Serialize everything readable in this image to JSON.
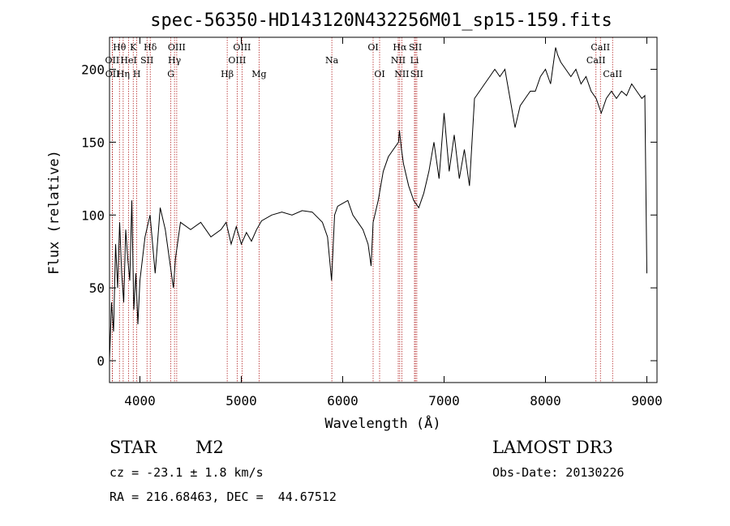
{
  "chart_data": {
    "type": "line",
    "title": "spec-56350-HD143120N432256M01_sp15-159.fits",
    "xlabel": "Wavelength (Å)",
    "ylabel": "Flux (relative)",
    "xlim": [
      3700,
      9100
    ],
    "ylim": [
      -15,
      222
    ],
    "x_ticks": [
      4000,
      5000,
      6000,
      7000,
      8000,
      9000
    ],
    "y_ticks": [
      0,
      50,
      100,
      150,
      200
    ],
    "series": [
      {
        "name": "spectrum",
        "x": [
          3700,
          3720,
          3740,
          3760,
          3780,
          3800,
          3820,
          3840,
          3860,
          3880,
          3900,
          3920,
          3940,
          3960,
          3980,
          4000,
          4050,
          4100,
          4150,
          4200,
          4250,
          4300,
          4330,
          4350,
          4400,
          4500,
          4600,
          4700,
          4800,
          4850,
          4900,
          4950,
          5000,
          5050,
          5100,
          5150,
          5200,
          5300,
          5400,
          5500,
          5600,
          5700,
          5800,
          5850,
          5890,
          5920,
          5950,
          6000,
          6050,
          6100,
          6150,
          6200,
          6250,
          6280,
          6300,
          6350,
          6400,
          6450,
          6500,
          6550,
          6560,
          6580,
          6600,
          6650,
          6700,
          6750,
          6800,
          6850,
          6900,
          6950,
          7000,
          7050,
          7100,
          7150,
          7200,
          7250,
          7300,
          7350,
          7400,
          7450,
          7500,
          7550,
          7600,
          7650,
          7700,
          7750,
          7800,
          7850,
          7900,
          7950,
          8000,
          8050,
          8100,
          8120,
          8150,
          8200,
          8250,
          8300,
          8350,
          8400,
          8450,
          8500,
          8550,
          8600,
          8650,
          8700,
          8750,
          8800,
          8850,
          8900,
          8950,
          8980,
          9000
        ],
        "y": [
          0,
          40,
          20,
          80,
          50,
          95,
          60,
          40,
          90,
          70,
          55,
          110,
          35,
          60,
          25,
          55,
          85,
          100,
          60,
          105,
          90,
          65,
          50,
          70,
          95,
          90,
          95,
          85,
          90,
          95,
          80,
          92,
          80,
          88,
          82,
          90,
          96,
          100,
          102,
          100,
          103,
          102,
          95,
          85,
          55,
          100,
          106,
          108,
          110,
          100,
          95,
          90,
          80,
          65,
          95,
          110,
          130,
          140,
          145,
          150,
          158,
          145,
          135,
          120,
          110,
          105,
          115,
          130,
          150,
          125,
          170,
          130,
          155,
          125,
          145,
          120,
          180,
          185,
          190,
          195,
          200,
          195,
          200,
          180,
          160,
          175,
          180,
          185,
          185,
          195,
          200,
          190,
          215,
          210,
          205,
          200,
          195,
          200,
          190,
          195,
          185,
          180,
          170,
          180,
          185,
          180,
          185,
          182,
          190,
          185,
          180,
          182,
          60
        ]
      }
    ],
    "line_labels": [
      {
        "label": "Hθ",
        "x": 3798,
        "row": 1
      },
      {
        "label": "K",
        "x": 3934,
        "row": 1
      },
      {
        "label": "Hδ",
        "x": 4102,
        "row": 1
      },
      {
        "label": "OIII",
        "x": 4363,
        "row": 1
      },
      {
        "label": "OIII",
        "x": 5007,
        "row": 1
      },
      {
        "label": "OI",
        "x": 6300,
        "row": 1
      },
      {
        "label": "Hα",
        "x": 6563,
        "row": 1
      },
      {
        "label": "SII",
        "x": 6717,
        "row": 1
      },
      {
        "label": "CaII",
        "x": 8542,
        "row": 1
      },
      {
        "label": "OII",
        "x": 3727,
        "row": 2
      },
      {
        "label": "HeI",
        "x": 3889,
        "row": 2
      },
      {
        "label": "SII",
        "x": 4070,
        "row": 2
      },
      {
        "label": "Hγ",
        "x": 4341,
        "row": 2
      },
      {
        "label": "OIII",
        "x": 4959,
        "row": 2
      },
      {
        "label": "Na",
        "x": 5893,
        "row": 2
      },
      {
        "label": "NII",
        "x": 6548,
        "row": 2
      },
      {
        "label": "Li",
        "x": 6708,
        "row": 2
      },
      {
        "label": "CaII",
        "x": 8498,
        "row": 2
      },
      {
        "label": "OII",
        "x": 3729,
        "row": 3
      },
      {
        "label": "Hη",
        "x": 3835,
        "row": 3
      },
      {
        "label": "H",
        "x": 3969,
        "row": 3
      },
      {
        "label": "G",
        "x": 4305,
        "row": 3
      },
      {
        "label": "Hβ",
        "x": 4861,
        "row": 3
      },
      {
        "label": "Mg",
        "x": 5175,
        "row": 3
      },
      {
        "label": "OI",
        "x": 6364,
        "row": 3
      },
      {
        "label": "NII",
        "x": 6583,
        "row": 3
      },
      {
        "label": "SII",
        "x": 6731,
        "row": 3
      },
      {
        "label": "CaII",
        "x": 8662,
        "row": 3
      }
    ]
  },
  "info": {
    "class_label": "STAR",
    "subclass": "M2",
    "survey": "LAMOST DR3",
    "cz": "cz = -23.1 ± 1.8 km/s",
    "obs_date": "Obs-Date: 20130226",
    "radec": "RA = 216.68463, DEC =  44.67512"
  },
  "colors": {
    "spectrum": "#000000",
    "line_marker": "#b22222"
  }
}
